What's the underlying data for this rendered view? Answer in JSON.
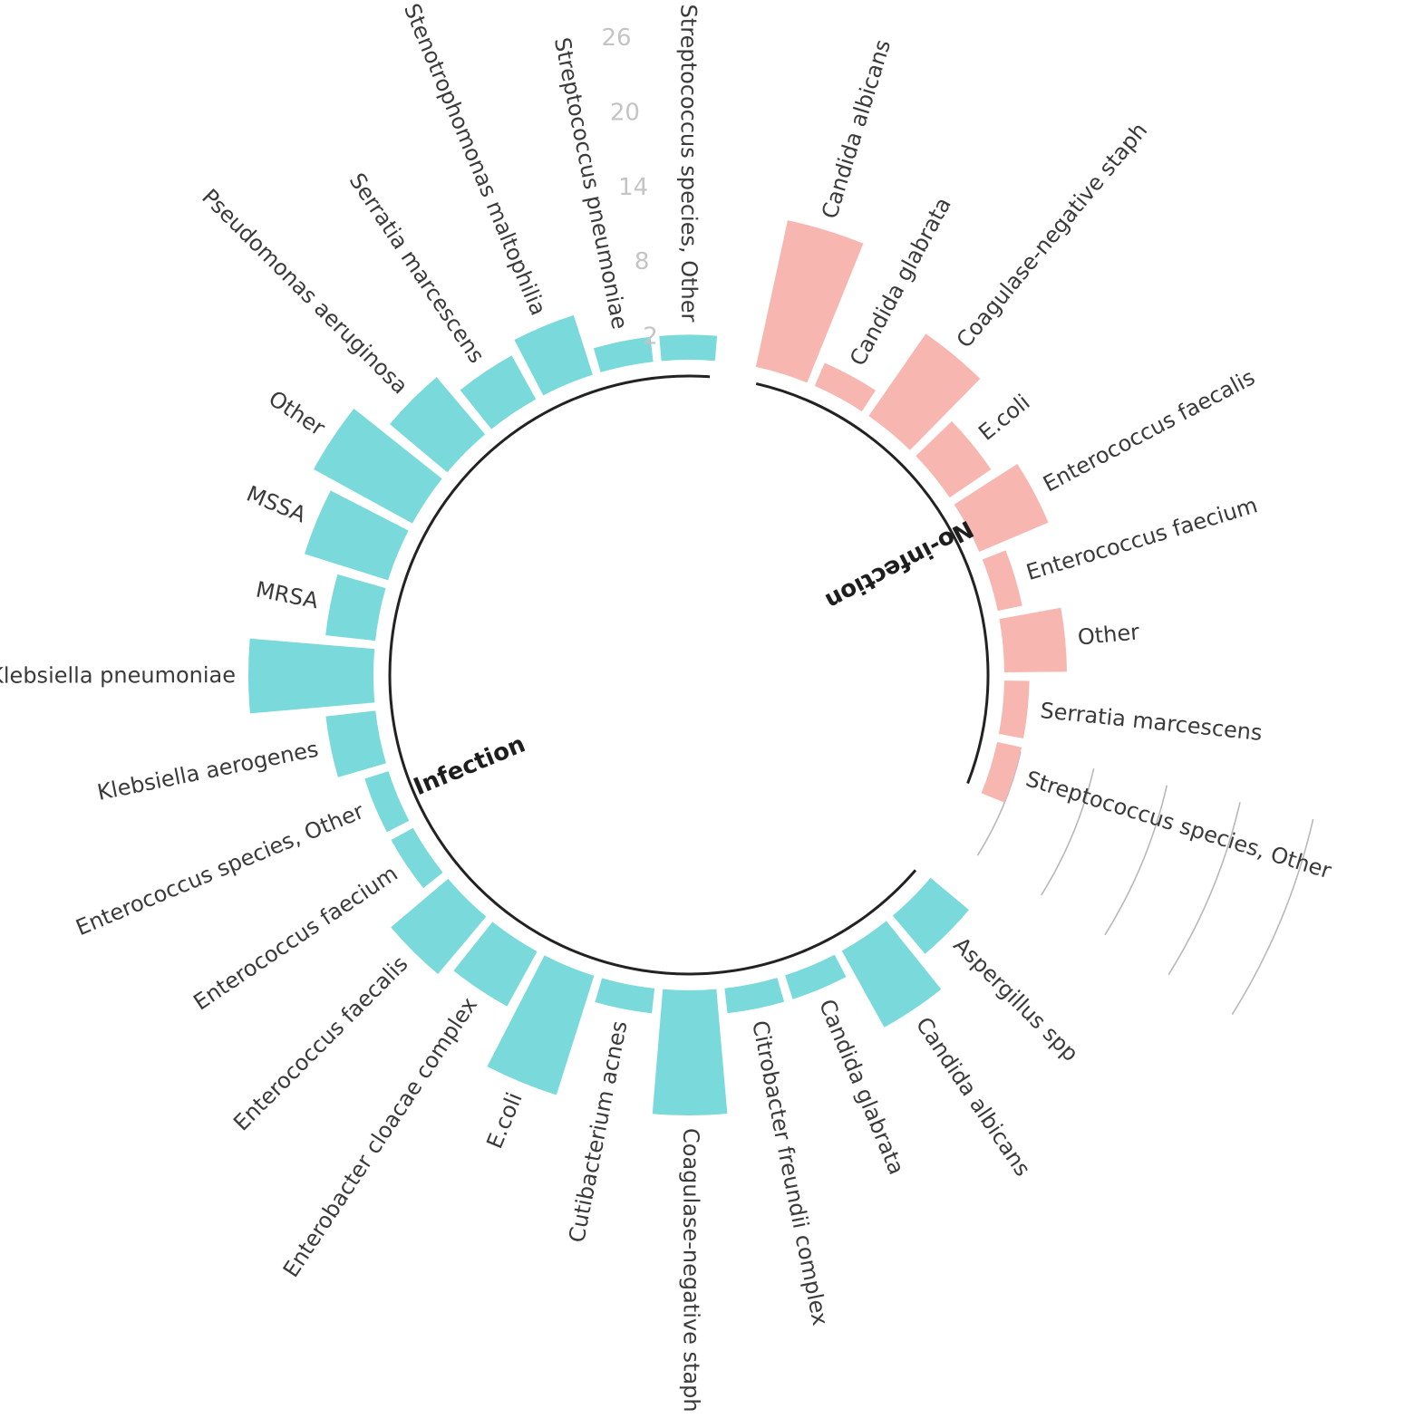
{
  "chart_data": {
    "type": "bar",
    "layout": "circular",
    "scale_ticks": [
      2,
      8,
      14,
      20,
      26
    ],
    "ylim": [
      0,
      26
    ],
    "colors": {
      "Infection": "#7ad9da",
      "No-infection": "#f7b6b0"
    },
    "groups": [
      {
        "name": "Infection",
        "categories": [
          "Aspergillus spp",
          "Candida albicans",
          "Candida glabrata",
          "Citrobacter freundii complex",
          "Coagulase-negative staph",
          "Cutibacterium acnes",
          "E.coli",
          "Enterobacter cloacae complex",
          "Enterococcus faecalis",
          "Enterococcus faecium",
          "Enterococcus species, Other",
          "Klebsiella aerogenes",
          "Klebsiella pneumoniae",
          "MRSA",
          "MSSA",
          "Other",
          "Pseudomonas aeruginosa",
          "Serratia marcescens",
          "Stenotrophomonas maltophilia",
          "Streptococcus pneumoniae",
          "Streptococcus species, Other"
        ],
        "values": [
          4,
          7,
          2,
          2,
          10,
          2,
          10,
          5,
          6,
          2,
          2,
          4,
          10,
          4,
          7,
          9,
          6,
          4,
          5,
          2,
          2
        ]
      },
      {
        "name": "No-infection",
        "categories": [
          "Candida albicans",
          "Candida glabrata",
          "Coagulase-negative staph",
          "E.coli",
          "Enterococcus faecalis",
          "Enterococcus faecium",
          "Other",
          "Serratia marcescens",
          "Streptococcus species, Other"
        ],
        "values": [
          12,
          2,
          8,
          4,
          6,
          2,
          5,
          2,
          2
        ]
      }
    ]
  }
}
